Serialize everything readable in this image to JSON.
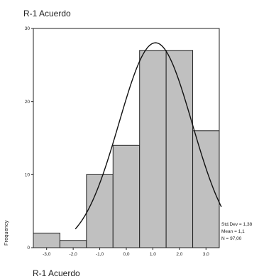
{
  "chart_data": {
    "type": "bar",
    "title": "R-1 Acuerdo",
    "xlabel": "R-1 Acuerdo",
    "ylabel": "Frequency",
    "x_ticks": [
      "-3,0",
      "-2,0",
      "-1,0",
      "0,0",
      "1,0",
      "2,0",
      "3,0"
    ],
    "y_ticks": [
      "0",
      "10",
      "20",
      "30"
    ],
    "ylim": [
      0,
      30
    ],
    "xlim": [
      -3.5,
      3.5
    ],
    "bins": [
      {
        "start": -3.5,
        "end": -2.5,
        "value": 2
      },
      {
        "start": -2.5,
        "end": -1.5,
        "value": 1
      },
      {
        "start": -1.5,
        "end": -0.5,
        "value": 10
      },
      {
        "start": -0.5,
        "end": 0.5,
        "value": 14
      },
      {
        "start": 0.5,
        "end": 1.5,
        "value": 27
      },
      {
        "start": 1.5,
        "end": 2.5,
        "value": 27
      },
      {
        "start": 2.5,
        "end": 3.5,
        "value": 16
      }
    ],
    "normal_curve": {
      "mean": 1.1,
      "std_dev": 1.38,
      "n": 97
    },
    "stats": [
      "Std.Dev = 1,38",
      "Mean = 1,1",
      "N = 97,00"
    ],
    "bar_color": "#c0c0c0",
    "grid": false
  }
}
